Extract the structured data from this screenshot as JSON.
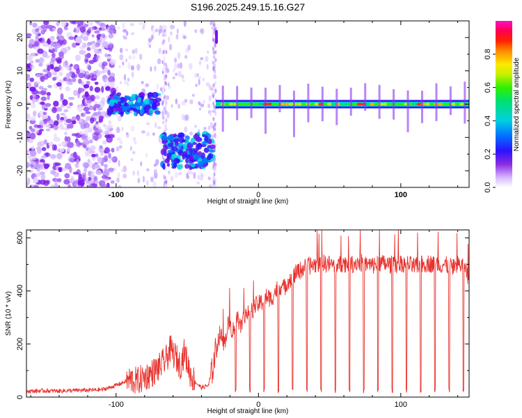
{
  "title": "S196.2025.249.15.16.G27",
  "chart_data": [
    {
      "type": "heatmap",
      "title": "S196.2025.249.15.16.G27",
      "xlabel": "Height of straight line (km)",
      "ylabel": "Frequency (Hz)",
      "xlim": [
        -163,
        148
      ],
      "ylim": [
        -25,
        25
      ],
      "xticks": [
        -100,
        0,
        100
      ],
      "yticks": [
        -20,
        -10,
        0,
        10,
        20
      ],
      "colorbar": {
        "label": "Normalized spectral amplitude",
        "range": [
          0,
          1
        ],
        "ticks": [
          0.0,
          0.2,
          0.4,
          0.6,
          0.8
        ],
        "colormap": "rainbow (white-purple-blue-cyan-green-yellow-orange-red-magenta)"
      },
      "features": [
        {
          "name": "scattered noise",
          "x_range": [
            -163,
            -100
          ],
          "freq_range": [
            -25,
            25
          ]
        },
        {
          "name": "signal cluster",
          "x_range": [
            -105,
            -70
          ],
          "freq_center": 0
        },
        {
          "name": "signal cluster",
          "x_range": [
            -68,
            -32
          ],
          "freq_center": -14
        },
        {
          "name": "steady carrier",
          "x_range": [
            -30,
            148
          ],
          "freq_center": 0
        }
      ]
    },
    {
      "type": "line",
      "xlabel": "Height of straight line (km)",
      "ylabel": "SNR (10 * v/v)",
      "xlim": [
        -163,
        148
      ],
      "ylim": [
        0,
        630
      ],
      "xticks": [
        -100,
        0,
        100
      ],
      "yticks": [
        0,
        200,
        400,
        600
      ],
      "color": "#e8312c",
      "series": [
        {
          "name": "SNR",
          "x": [
            -163,
            -150,
            -140,
            -130,
            -120,
            -110,
            -105,
            -100,
            -95,
            -90,
            -85,
            -80,
            -75,
            -70,
            -65,
            -62,
            -58,
            -55,
            -52,
            -48,
            -45,
            -40,
            -35,
            -32,
            -30,
            -27,
            -24,
            -21,
            -18,
            -15,
            -12,
            -9,
            -6,
            -3,
            0,
            3,
            6,
            9,
            12,
            15,
            18,
            21,
            24,
            27,
            30,
            33,
            36,
            40,
            45,
            50,
            55,
            60,
            65,
            70,
            75,
            80,
            85,
            90,
            95,
            100,
            105,
            110,
            115,
            120,
            125,
            130,
            135,
            140,
            145,
            148
          ],
          "values": [
            22,
            24,
            23,
            25,
            26,
            28,
            35,
            45,
            55,
            65,
            60,
            75,
            90,
            110,
            140,
            180,
            150,
            120,
            170,
            90,
            60,
            35,
            45,
            110,
            180,
            240,
            200,
            280,
            250,
            300,
            270,
            320,
            310,
            340,
            350,
            360,
            380,
            370,
            400,
            420,
            410,
            440,
            450,
            470,
            480,
            490,
            495,
            500,
            505,
            500,
            495,
            505,
            500,
            510,
            500,
            495,
            505,
            500,
            498,
            505,
            500,
            490,
            500,
            505,
            495,
            500,
            490,
            500,
            495,
            430
          ]
        }
      ]
    }
  ]
}
